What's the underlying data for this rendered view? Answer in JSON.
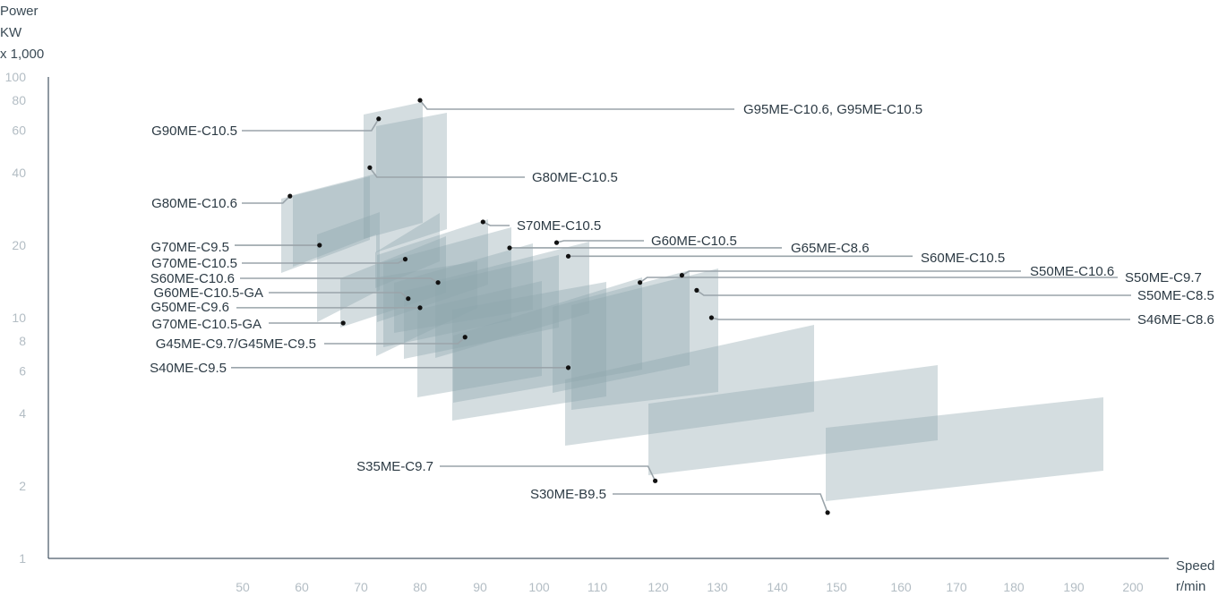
{
  "chart_data": {
    "type": "scatter",
    "title": "",
    "ylabel_lines": [
      "Power",
      "KW",
      "x 1,000"
    ],
    "xlabel_lines": [
      "Speed",
      "r/min"
    ],
    "y_scale": "log",
    "ylim": [
      1,
      100
    ],
    "y_ticks": [
      "1",
      "2",
      "4",
      "6",
      "8",
      "10",
      "20",
      "40",
      "60",
      "80",
      "100"
    ],
    "y_tick_values": [
      1,
      2,
      4,
      6,
      8,
      10,
      20,
      40,
      60,
      80,
      100
    ],
    "x_ticks": [
      "50",
      "60",
      "70",
      "80",
      "90",
      "100",
      "110",
      "120",
      "130",
      "140",
      "150",
      "160",
      "170",
      "180",
      "190",
      "200"
    ],
    "grid": false,
    "colors": {
      "band": "#8fa6ad",
      "axis": "#1f3344",
      "leader": "#9aa4aa",
      "marker": "#111111"
    },
    "engines": [
      {
        "name": "G95ME-C10.6, G95ME-C10.5",
        "speed": 80,
        "power": 80
      },
      {
        "name": "G90ME-C10.5",
        "speed": 73,
        "power": 67
      },
      {
        "name": "G80ME-C10.5",
        "speed": 71.5,
        "power": 42
      },
      {
        "name": "G80ME-C10.6",
        "speed": 58,
        "power": 32
      },
      {
        "name": "S70ME-C10.5",
        "speed": 90.5,
        "power": 25
      },
      {
        "name": "G70ME-C9.5",
        "speed": 63,
        "power": 20
      },
      {
        "name": "G60ME-C10.5",
        "speed": 103,
        "power": 20.5
      },
      {
        "name": "G65ME-C8.6",
        "speed": 95,
        "power": 19.5
      },
      {
        "name": "S60ME-C10.5",
        "speed": 105,
        "power": 18
      },
      {
        "name": "G70ME-C10.5",
        "speed": 77.5,
        "power": 17.5
      },
      {
        "name": "S50ME-C10.6",
        "speed": 124,
        "power": 15
      },
      {
        "name": "S50ME-C9.7",
        "speed": 117,
        "power": 14
      },
      {
        "name": "S60ME-C10.6",
        "speed": 83,
        "power": 14
      },
      {
        "name": "S50ME-C8.5",
        "speed": 126.5,
        "power": 13
      },
      {
        "name": "G60ME-C10.5-GA",
        "speed": 78,
        "power": 12
      },
      {
        "name": "G50ME-C9.6",
        "speed": 80,
        "power": 11
      },
      {
        "name": "S46ME-C8.6",
        "speed": 129,
        "power": 10
      },
      {
        "name": "G70ME-C10.5-GA",
        "speed": 67,
        "power": 9.5
      },
      {
        "name": "G45ME-C9.7/G45ME-C9.5",
        "speed": 87.5,
        "power": 8.3
      },
      {
        "name": "S40ME-C9.5",
        "speed": 105,
        "power": 6.2
      },
      {
        "name": "S35ME-C9.7",
        "speed": 119.5,
        "power": 2.1
      },
      {
        "name": "S30ME-B9.5",
        "speed": 148.5,
        "power": 1.55
      }
    ]
  }
}
